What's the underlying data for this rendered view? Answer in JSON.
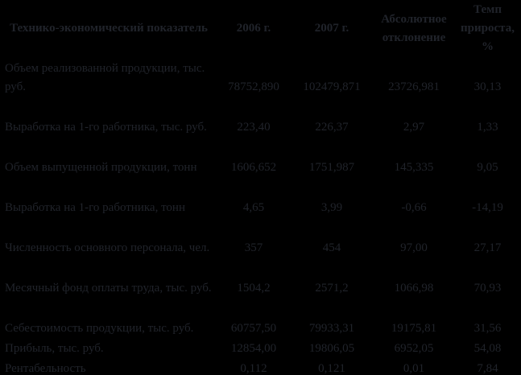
{
  "page": {
    "background_color": "#000000",
    "text_color": "#20232a",
    "description": "Borderless dark-rendered table of technical-economic indicators (Russian), 2006 vs 2007"
  },
  "table": {
    "headers": {
      "indicator": "Технико-экономический показатель",
      "year_2006": "2006 г.",
      "year_2007": "2007 г.",
      "abs_deviation": "Абсолютное отклонение",
      "growth_rate": "Темп прироста, %"
    },
    "rows": [
      {
        "label": "Объем реализованной продукции, тыс. руб.",
        "y2006": "78752,890",
        "y2007": "102479,871",
        "deviation": "23726,981",
        "growth": "30,13",
        "lines": 2
      },
      {
        "label": "Выработка на 1-го работника, тыс. руб.",
        "y2006": "223,40",
        "y2007": "226,37",
        "deviation": "2,97",
        "growth": "1,33",
        "lines": 2
      },
      {
        "label": "Объем выпущенной продукции, тонн",
        "y2006": "1606,652",
        "y2007": "1751,987",
        "deviation": "145,335",
        "growth": "9,05",
        "lines": 2
      },
      {
        "label": "Выработка на 1-го работника, тонн",
        "y2006": "4,65",
        "y2007": "3,99",
        "deviation": "-0,66",
        "growth": "-14,19",
        "lines": 2
      },
      {
        "label": "Численность основного персонала, чел.",
        "y2006": "357",
        "y2007": "454",
        "deviation": "97,00",
        "growth": "27,17",
        "lines": 2
      },
      {
        "label": "Месячный фонд оплаты труда, тыс. руб.",
        "y2006": "1504,2",
        "y2007": "2571,2",
        "deviation": "1066,98",
        "growth": "70,93",
        "lines": 2
      },
      {
        "label": "Себестоимость продукции, тыс. руб.",
        "y2006": "60757,50",
        "y2007": "79933,31",
        "deviation": "19175,81",
        "growth": "31,56",
        "lines": 2
      },
      {
        "label": "Прибыль, тыс. руб.",
        "y2006": "12854,00",
        "y2007": "19806,05",
        "deviation": "6952,05",
        "growth": "54,08",
        "lines": 1
      },
      {
        "label": "Рентабельность",
        "y2006": "0,112",
        "y2007": "0,121",
        "deviation": "0,01",
        "growth": "7,84",
        "lines": 1
      }
    ]
  }
}
